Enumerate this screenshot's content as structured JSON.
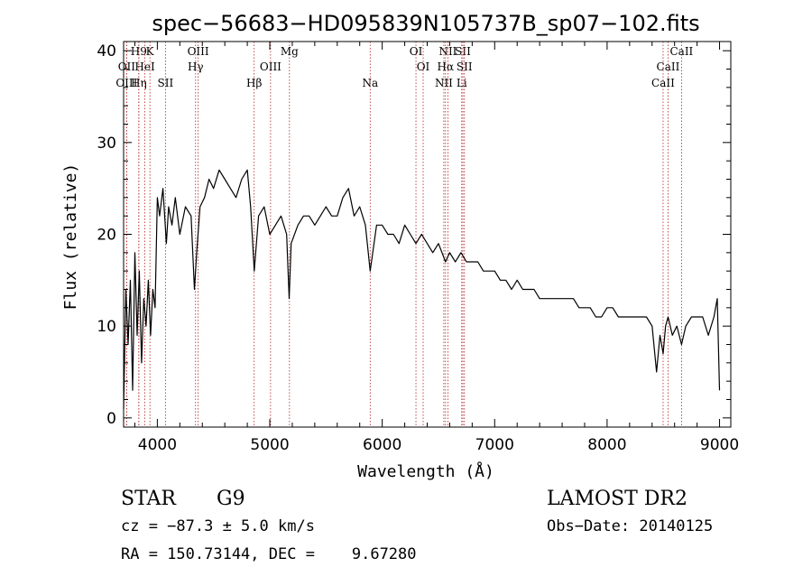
{
  "chart_data": {
    "type": "line",
    "title": "spec−56683−HD095839N105737B_sp07−102.fits",
    "xlabel": "Wavelength (Å)",
    "ylabel": "Flux (relative)",
    "xlim": [
      3700,
      9100
    ],
    "ylim": [
      -1,
      41
    ],
    "xticks": [
      4000,
      5000,
      6000,
      7000,
      8000,
      9000
    ],
    "yticks": [
      0,
      10,
      20,
      30,
      40
    ],
    "series": [
      {
        "x": [
          3700,
          3720,
          3740,
          3760,
          3780,
          3800,
          3820,
          3840,
          3860,
          3880,
          3900,
          3920,
          3940,
          3960,
          3980,
          4000,
          4020,
          4050,
          4080,
          4100,
          4130,
          4160,
          4200,
          4250,
          4300,
          4330,
          4350,
          4380,
          4420,
          4460,
          4500,
          4550,
          4600,
          4650,
          4700,
          4750,
          4800,
          4830,
          4862,
          4900,
          4950,
          5000,
          5050,
          5100,
          5150,
          5172,
          5190,
          5250,
          5300,
          5350,
          5400,
          5450,
          5500,
          5550,
          5600,
          5650,
          5700,
          5750,
          5800,
          5850,
          5893,
          5950,
          6000,
          6050,
          6100,
          6150,
          6200,
          6250,
          6300,
          6350,
          6400,
          6450,
          6500,
          6563,
          6600,
          6650,
          6700,
          6750,
          6800,
          6850,
          6900,
          6950,
          7000,
          7050,
          7100,
          7150,
          7200,
          7250,
          7300,
          7350,
          7400,
          7450,
          7500,
          7550,
          7600,
          7650,
          7700,
          7750,
          7800,
          7850,
          7900,
          7950,
          8000,
          8050,
          8100,
          8150,
          8200,
          8250,
          8300,
          8350,
          8400,
          8440,
          8470,
          8498,
          8520,
          8542,
          8580,
          8620,
          8662,
          8700,
          8750,
          8800,
          8850,
          8900,
          8950,
          8980,
          9000
        ],
        "y": [
          1,
          14,
          8,
          15,
          3,
          18,
          9,
          16,
          6,
          13,
          10,
          15,
          9,
          14,
          12,
          24,
          22,
          25,
          19,
          23,
          21,
          24,
          20,
          23,
          22,
          14,
          18,
          23,
          24,
          26,
          25,
          27,
          26,
          25,
          24,
          26,
          27,
          23,
          16,
          22,
          23,
          20,
          21,
          22,
          20,
          13,
          19,
          21,
          22,
          22,
          21,
          22,
          23,
          22,
          22,
          24,
          25,
          22,
          23,
          21,
          16,
          21,
          21,
          20,
          20,
          19,
          21,
          20,
          19,
          20,
          19,
          18,
          19,
          17,
          18,
          17,
          18,
          17,
          17,
          17,
          16,
          16,
          16,
          15,
          15,
          14,
          15,
          14,
          14,
          14,
          13,
          13,
          13,
          13,
          13,
          13,
          13,
          12,
          12,
          12,
          11,
          11,
          12,
          12,
          11,
          11,
          11,
          11,
          11,
          11,
          10,
          5,
          9,
          7,
          10,
          11,
          9,
          10,
          8,
          10,
          11,
          11,
          11,
          9,
          11,
          13,
          3
        ]
      }
    ],
    "spectral_lines": [
      {
        "label": "H9",
        "x": 3835,
        "row": 0
      },
      {
        "label": "K",
        "x": 3934,
        "row": 0
      },
      {
        "label": "OIII",
        "x": 4363,
        "row": 0
      },
      {
        "label": "Mg",
        "x": 5175,
        "row": 0
      },
      {
        "label": "OI",
        "x": 6300,
        "row": 0
      },
      {
        "label": "NII",
        "x": 6584,
        "row": 0
      },
      {
        "label": "SII",
        "x": 6717,
        "row": 0
      },
      {
        "label": "CaII",
        "x": 8662,
        "row": 0
      },
      {
        "label": "OII",
        "x": 3727,
        "row": 1
      },
      {
        "label": "HeI",
        "x": 3889,
        "row": 1
      },
      {
        "label": "Hγ",
        "x": 4340,
        "row": 1
      },
      {
        "label": "OIII",
        "x": 5007,
        "row": 1
      },
      {
        "label": "OI",
        "x": 6364,
        "row": 1
      },
      {
        "label": "Hα",
        "x": 6563,
        "row": 1
      },
      {
        "label": "SII",
        "x": 6731,
        "row": 1
      },
      {
        "label": "CaII",
        "x": 8542,
        "row": 1
      },
      {
        "label": "OIII",
        "x": 3727,
        "row": 2
      },
      {
        "label": "Hη",
        "x": 3835,
        "row": 2
      },
      {
        "label": "SII",
        "x": 4072,
        "row": 2
      },
      {
        "label": "Hβ",
        "x": 4861,
        "row": 2
      },
      {
        "label": "Na",
        "x": 5893,
        "row": 2
      },
      {
        "label": "NII",
        "x": 6548,
        "row": 2
      },
      {
        "label": "Li",
        "x": 6707,
        "row": 2
      },
      {
        "label": "CaII",
        "x": 8498,
        "row": 2
      }
    ]
  },
  "info": {
    "class_label": "STAR",
    "subclass": "G9",
    "survey": "LAMOST DR2",
    "redshift": "cz = −87.3 ± 5.0 km/s",
    "obs_date": "Obs−Date: 20140125",
    "coords": "RA = 150.73144, DEC =    9.67280"
  }
}
